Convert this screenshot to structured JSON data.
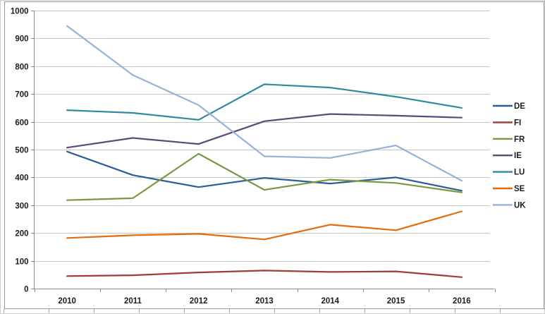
{
  "window": {
    "background": "#ffffff",
    "outer_border_color": "#cdcdcd",
    "chart_frame_border_color": "#9a9a9a"
  },
  "chart_data": {
    "type": "line",
    "title": "",
    "categories": [
      "2010",
      "2011",
      "2012",
      "2013",
      "2014",
      "2015",
      "2016"
    ],
    "series": [
      {
        "name": "DE",
        "color": "#2E5C96",
        "values": [
          493,
          408,
          365,
          398,
          378,
          400,
          352
        ]
      },
      {
        "name": "FI",
        "color": "#A13B35",
        "values": [
          45,
          48,
          58,
          65,
          60,
          62,
          41
        ]
      },
      {
        "name": "FR",
        "color": "#78993F",
        "values": [
          318,
          325,
          485,
          355,
          392,
          380,
          346
        ]
      },
      {
        "name": "IE",
        "color": "#5F497A",
        "values": [
          507,
          542,
          520,
          602,
          628,
          622,
          615
        ]
      },
      {
        "name": "LU",
        "color": "#2E8B9F",
        "values": [
          642,
          632,
          607,
          735,
          723,
          690,
          650
        ]
      },
      {
        "name": "SE",
        "color": "#E36D0C",
        "values": [
          182,
          192,
          197,
          177,
          230,
          210,
          278
        ]
      },
      {
        "name": "UK",
        "color": "#95B3D7",
        "values": [
          945,
          768,
          660,
          476,
          470,
          515,
          388
        ]
      }
    ],
    "ylim": [
      0,
      1000
    ],
    "ytick_step": 100,
    "y_tick_labels": [
      "0",
      "100",
      "200",
      "300",
      "400",
      "500",
      "600",
      "700",
      "800",
      "900",
      "1000"
    ],
    "grid": true,
    "legend_position": "right",
    "gridline_color": "#c6c6c6",
    "axis_color": "#8a8a8a",
    "label_color": "#1c1c1c"
  },
  "worksheet": {
    "edge_tick_color": "#a9a9a9",
    "edge_tick_spacing_px": 64
  }
}
